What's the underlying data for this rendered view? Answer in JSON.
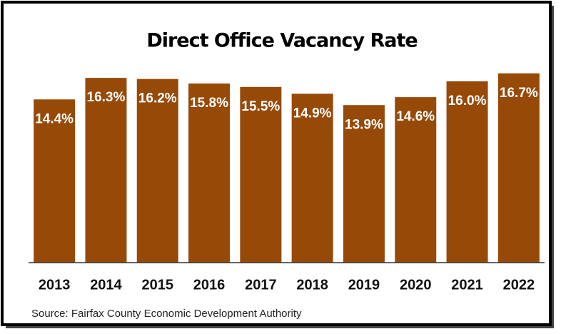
{
  "chart_data": {
    "type": "bar",
    "title": "Direct Office Vacancy Rate",
    "categories": [
      "2013",
      "2014",
      "2015",
      "2016",
      "2017",
      "2018",
      "2019",
      "2020",
      "2021",
      "2022"
    ],
    "values": [
      14.4,
      16.3,
      16.2,
      15.8,
      15.5,
      14.9,
      13.9,
      14.6,
      16.0,
      16.7
    ],
    "value_labels": [
      "14.4%",
      "16.3%",
      "16.2%",
      "15.8%",
      "15.5%",
      "14.9%",
      "13.9%",
      "14.6%",
      "16.0%",
      "16.7%"
    ],
    "color": "#974a08",
    "ylim": [
      0,
      17
    ],
    "source": "Source:  Fairfax County Economic Development Authority"
  }
}
